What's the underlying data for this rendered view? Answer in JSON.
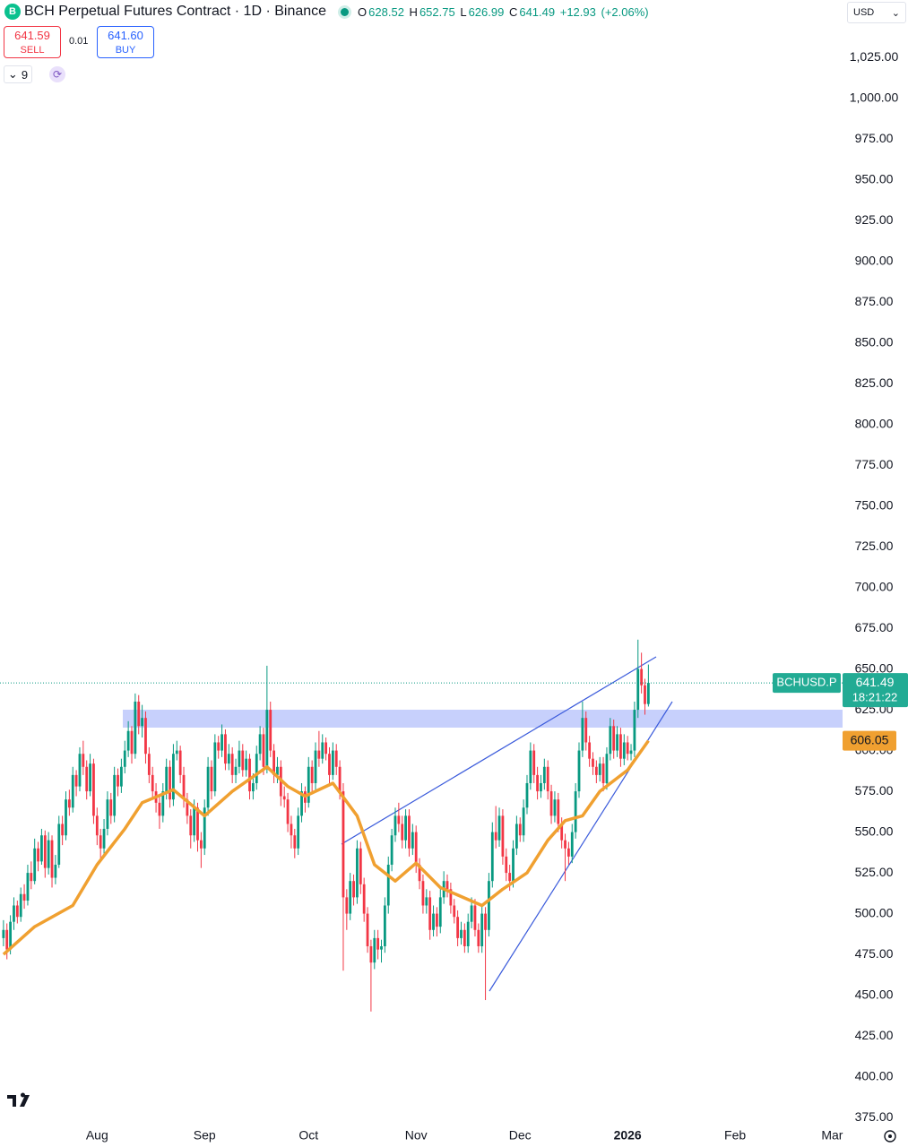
{
  "header": {
    "title": "BCH Perpetual Futures Contract · 1D · Binance",
    "ohlc_letters": [
      "O",
      "H",
      "L",
      "C"
    ],
    "change": "+12.93",
    "change_percent": "(+2.06%)",
    "currency": "USD",
    "indicator_count": "9"
  },
  "trade": {
    "sell_price": "641.59",
    "sell_label": "SELL",
    "spread": "0.01",
    "buy_price": "641.60",
    "buy_label": "BUY"
  },
  "price_tags": {
    "symbol": "BCHUSD.P",
    "countdown": "18:21:22"
  },
  "chart_data": {
    "type": "candlestick",
    "up_color": "#089981",
    "down_color": "#f23645",
    "grid": false,
    "candles": [
      [
        485,
        496,
        480,
        490
      ],
      [
        490,
        494,
        472,
        478
      ],
      [
        478,
        499,
        475,
        495
      ],
      [
        495,
        510,
        490,
        505
      ],
      [
        505,
        508,
        494,
        498
      ],
      [
        498,
        516,
        495,
        512
      ],
      [
        512,
        518,
        503,
        508
      ],
      [
        508,
        530,
        505,
        525
      ],
      [
        525,
        532,
        515,
        520
      ],
      [
        520,
        546,
        518,
        540
      ],
      [
        540,
        544,
        526,
        532
      ],
      [
        532,
        552,
        530,
        548
      ],
      [
        548,
        551,
        522,
        528
      ],
      [
        528,
        550,
        524,
        545
      ],
      [
        545,
        548,
        516,
        522
      ],
      [
        522,
        536,
        518,
        530
      ],
      [
        530,
        560,
        528,
        555
      ],
      [
        555,
        560,
        542,
        548
      ],
      [
        548,
        575,
        545,
        570
      ],
      [
        570,
        576,
        560,
        565
      ],
      [
        565,
        590,
        562,
        585
      ],
      [
        585,
        588,
        572,
        578
      ],
      [
        578,
        602,
        575,
        598
      ],
      [
        598,
        606,
        585,
        590
      ],
      [
        590,
        594,
        570,
        575
      ],
      [
        575,
        598,
        572,
        592
      ],
      [
        592,
        595,
        555,
        560
      ],
      [
        560,
        565,
        542,
        548
      ],
      [
        548,
        552,
        532,
        540
      ],
      [
        540,
        558,
        536,
        552
      ],
      [
        552,
        575,
        548,
        570
      ],
      [
        570,
        574,
        555,
        560
      ],
      [
        560,
        590,
        556,
        585
      ],
      [
        585,
        589,
        572,
        578
      ],
      [
        578,
        595,
        574,
        590
      ],
      [
        590,
        606,
        586,
        600
      ],
      [
        600,
        618,
        596,
        612
      ],
      [
        612,
        615,
        592,
        598
      ],
      [
        598,
        635,
        595,
        630
      ],
      [
        630,
        634,
        610,
        615
      ],
      [
        615,
        628,
        608,
        620
      ],
      [
        620,
        624,
        592,
        598
      ],
      [
        598,
        602,
        580,
        585
      ],
      [
        585,
        590,
        570,
        575
      ],
      [
        575,
        580,
        562,
        568
      ],
      [
        568,
        572,
        552,
        560
      ],
      [
        560,
        580,
        556,
        575
      ],
      [
        575,
        595,
        570,
        590
      ],
      [
        590,
        594,
        565,
        570
      ],
      [
        570,
        604,
        566,
        598
      ],
      [
        598,
        606,
        594,
        600
      ],
      [
        600,
        603,
        580,
        585
      ],
      [
        585,
        590,
        565,
        570
      ],
      [
        570,
        574,
        555,
        560
      ],
      [
        560,
        564,
        540,
        548
      ],
      [
        548,
        570,
        544,
        565
      ],
      [
        565,
        568,
        538,
        545
      ],
      [
        545,
        550,
        528,
        540
      ],
      [
        540,
        570,
        536,
        565
      ],
      [
        565,
        596,
        560,
        590
      ],
      [
        590,
        594,
        570,
        575
      ],
      [
        575,
        610,
        572,
        605
      ],
      [
        605,
        609,
        595,
        600
      ],
      [
        600,
        616,
        596,
        610
      ],
      [
        610,
        613,
        588,
        592
      ],
      [
        592,
        604,
        588,
        598
      ],
      [
        598,
        602,
        580,
        585
      ],
      [
        585,
        595,
        580,
        590
      ],
      [
        590,
        606,
        586,
        600
      ],
      [
        600,
        604,
        584,
        588
      ],
      [
        588,
        600,
        584,
        595
      ],
      [
        595,
        598,
        570,
        575
      ],
      [
        575,
        586,
        570,
        580
      ],
      [
        580,
        603,
        576,
        598
      ],
      [
        598,
        615,
        594,
        610
      ],
      [
        610,
        614,
        585,
        590
      ],
      [
        590,
        652,
        586,
        625
      ],
      [
        625,
        630,
        596,
        600
      ],
      [
        600,
        604,
        580,
        585
      ],
      [
        585,
        596,
        580,
        590
      ],
      [
        590,
        594,
        566,
        572
      ],
      [
        572,
        578,
        565,
        570
      ],
      [
        570,
        574,
        550,
        555
      ],
      [
        555,
        560,
        540,
        548
      ],
      [
        548,
        552,
        534,
        540
      ],
      [
        540,
        565,
        536,
        560
      ],
      [
        560,
        580,
        556,
        575
      ],
      [
        575,
        578,
        562,
        568
      ],
      [
        568,
        596,
        565,
        590
      ],
      [
        590,
        594,
        575,
        580
      ],
      [
        580,
        605,
        576,
        600
      ],
      [
        600,
        612,
        590,
        595
      ],
      [
        595,
        610,
        592,
        605
      ],
      [
        605,
        608,
        594,
        598
      ],
      [
        598,
        602,
        580,
        585
      ],
      [
        585,
        605,
        582,
        600
      ],
      [
        600,
        604,
        585,
        590
      ],
      [
        590,
        594,
        570,
        575
      ],
      [
        575,
        580,
        465,
        510
      ],
      [
        510,
        515,
        490,
        500
      ],
      [
        500,
        525,
        496,
        520
      ],
      [
        520,
        524,
        505,
        510
      ],
      [
        510,
        545,
        506,
        540
      ],
      [
        540,
        544,
        512,
        518
      ],
      [
        518,
        522,
        495,
        500
      ],
      [
        500,
        504,
        476,
        480
      ],
      [
        480,
        484,
        440,
        470
      ],
      [
        470,
        490,
        466,
        485
      ],
      [
        485,
        490,
        472,
        478
      ],
      [
        478,
        484,
        470,
        480
      ],
      [
        480,
        510,
        476,
        505
      ],
      [
        505,
        535,
        500,
        530
      ],
      [
        530,
        552,
        526,
        548
      ],
      [
        548,
        565,
        544,
        560
      ],
      [
        560,
        568,
        550,
        555
      ],
      [
        555,
        560,
        540,
        545
      ],
      [
        545,
        564,
        540,
        560
      ],
      [
        560,
        564,
        535,
        540
      ],
      [
        540,
        555,
        536,
        550
      ],
      [
        550,
        554,
        525,
        530
      ],
      [
        530,
        534,
        515,
        520
      ],
      [
        520,
        524,
        500,
        505
      ],
      [
        505,
        515,
        500,
        510
      ],
      [
        510,
        514,
        484,
        490
      ],
      [
        490,
        505,
        486,
        500
      ],
      [
        500,
        504,
        486,
        492
      ],
      [
        492,
        515,
        488,
        510
      ],
      [
        510,
        526,
        506,
        520
      ],
      [
        520,
        524,
        510,
        515
      ],
      [
        515,
        519,
        500,
        505
      ],
      [
        505,
        509,
        494,
        498
      ],
      [
        498,
        502,
        480,
        485
      ],
      [
        485,
        495,
        481,
        490
      ],
      [
        490,
        494,
        476,
        480
      ],
      [
        480,
        500,
        476,
        495
      ],
      [
        495,
        510,
        491,
        505
      ],
      [
        505,
        509,
        486,
        490
      ],
      [
        490,
        494,
        476,
        480
      ],
      [
        480,
        505,
        476,
        500
      ],
      [
        500,
        504,
        447,
        490
      ],
      [
        490,
        525,
        486,
        520
      ],
      [
        520,
        556,
        516,
        550
      ],
      [
        550,
        566,
        540,
        545
      ],
      [
        545,
        565,
        541,
        560
      ],
      [
        560,
        564,
        530,
        535
      ],
      [
        535,
        540,
        520,
        525
      ],
      [
        525,
        530,
        514,
        520
      ],
      [
        520,
        545,
        516,
        540
      ],
      [
        540,
        560,
        536,
        555
      ],
      [
        555,
        559,
        544,
        548
      ],
      [
        548,
        570,
        544,
        565
      ],
      [
        565,
        585,
        561,
        580
      ],
      [
        580,
        605,
        576,
        600
      ],
      [
        600,
        604,
        580,
        585
      ],
      [
        585,
        590,
        570,
        575
      ],
      [
        575,
        585,
        571,
        580
      ],
      [
        580,
        595,
        576,
        590
      ],
      [
        590,
        594,
        570,
        575
      ],
      [
        575,
        579,
        555,
        560
      ],
      [
        560,
        575,
        556,
        570
      ],
      [
        570,
        574,
        550,
        555
      ],
      [
        555,
        559,
        540,
        545
      ],
      [
        545,
        549,
        520,
        540
      ],
      [
        540,
        544,
        530,
        535
      ],
      [
        535,
        555,
        531,
        550
      ],
      [
        550,
        580,
        546,
        575
      ],
      [
        575,
        605,
        571,
        600
      ],
      [
        600,
        630,
        596,
        620
      ],
      [
        620,
        624,
        600,
        605
      ],
      [
        605,
        609,
        590,
        595
      ],
      [
        595,
        599,
        585,
        590
      ],
      [
        590,
        594,
        580,
        585
      ],
      [
        585,
        596,
        581,
        592
      ],
      [
        592,
        596,
        575,
        580
      ],
      [
        580,
        602,
        576,
        598
      ],
      [
        598,
        620,
        594,
        615
      ],
      [
        615,
        619,
        595,
        600
      ],
      [
        600,
        615,
        596,
        610
      ],
      [
        610,
        614,
        590,
        595
      ],
      [
        595,
        610,
        591,
        605
      ],
      [
        605,
        609,
        594,
        598
      ],
      [
        598,
        604,
        594,
        600
      ],
      [
        600,
        630,
        596,
        625
      ],
      [
        625,
        668,
        620,
        650
      ],
      [
        650,
        660,
        635,
        640
      ],
      [
        640,
        644,
        622,
        628.52
      ],
      [
        628.52,
        652.75,
        626.99,
        641.49
      ]
    ],
    "ma": {
      "color": "#f0a030",
      "x": [
        0,
        9,
        20,
        27,
        35,
        40,
        49,
        58,
        66,
        76,
        82,
        87,
        95,
        102,
        107,
        113,
        119,
        126,
        138,
        144,
        151,
        157,
        162,
        167,
        172,
        180,
        186
      ],
      "values": [
        475,
        492,
        505,
        530,
        552,
        568,
        576,
        560,
        575,
        590,
        578,
        572,
        580,
        560,
        530,
        520,
        531,
        516,
        505,
        515,
        525,
        545,
        557,
        560,
        575,
        588,
        606.05
      ]
    },
    "xlim": [
      -1,
      242
    ],
    "ylim": [
      373.4,
      1060.2
    ],
    "xticks": [
      {
        "value": 27,
        "label": "Aug"
      },
      {
        "value": 58,
        "label": "Sep"
      },
      {
        "value": 88,
        "label": "Oct"
      },
      {
        "value": 119,
        "label": "Nov"
      },
      {
        "value": 149,
        "label": "Dec"
      },
      {
        "value": 180,
        "label": "2026"
      },
      {
        "value": 211,
        "label": "Feb"
      },
      {
        "value": 239,
        "label": "Mar"
      }
    ],
    "yticks": [
      {
        "value": 375,
        "label": "375.00"
      },
      {
        "value": 400,
        "label": "400.00"
      },
      {
        "value": 425,
        "label": "425.00"
      },
      {
        "value": 450,
        "label": "450.00"
      },
      {
        "value": 475,
        "label": "475.00"
      },
      {
        "value": 500,
        "label": "500.00"
      },
      {
        "value": 525,
        "label": "525.00"
      },
      {
        "value": 550,
        "label": "550.00"
      },
      {
        "value": 575,
        "label": "575.00"
      },
      {
        "value": 600,
        "label": "600.00"
      },
      {
        "value": 625,
        "label": "625.00"
      },
      {
        "value": 650,
        "label": "650.00"
      },
      {
        "value": 675,
        "label": "675.00"
      },
      {
        "value": 700,
        "label": "700.00"
      },
      {
        "value": 725,
        "label": "725.00"
      },
      {
        "value": 750,
        "label": "750.00"
      },
      {
        "value": 775,
        "label": "775.00"
      },
      {
        "value": 800,
        "label": "800.00"
      },
      {
        "value": 825,
        "label": "825.00"
      },
      {
        "value": 850,
        "label": "850.00"
      },
      {
        "value": 875,
        "label": "875.00"
      },
      {
        "value": 900,
        "label": "900.00"
      },
      {
        "value": 925,
        "label": "925.00"
      },
      {
        "value": 950,
        "label": "950.00"
      },
      {
        "value": 975,
        "label": "975.00"
      },
      {
        "value": 1000,
        "label": "1,000.00"
      },
      {
        "value": 1025,
        "label": "1,025.00"
      }
    ]
  }
}
